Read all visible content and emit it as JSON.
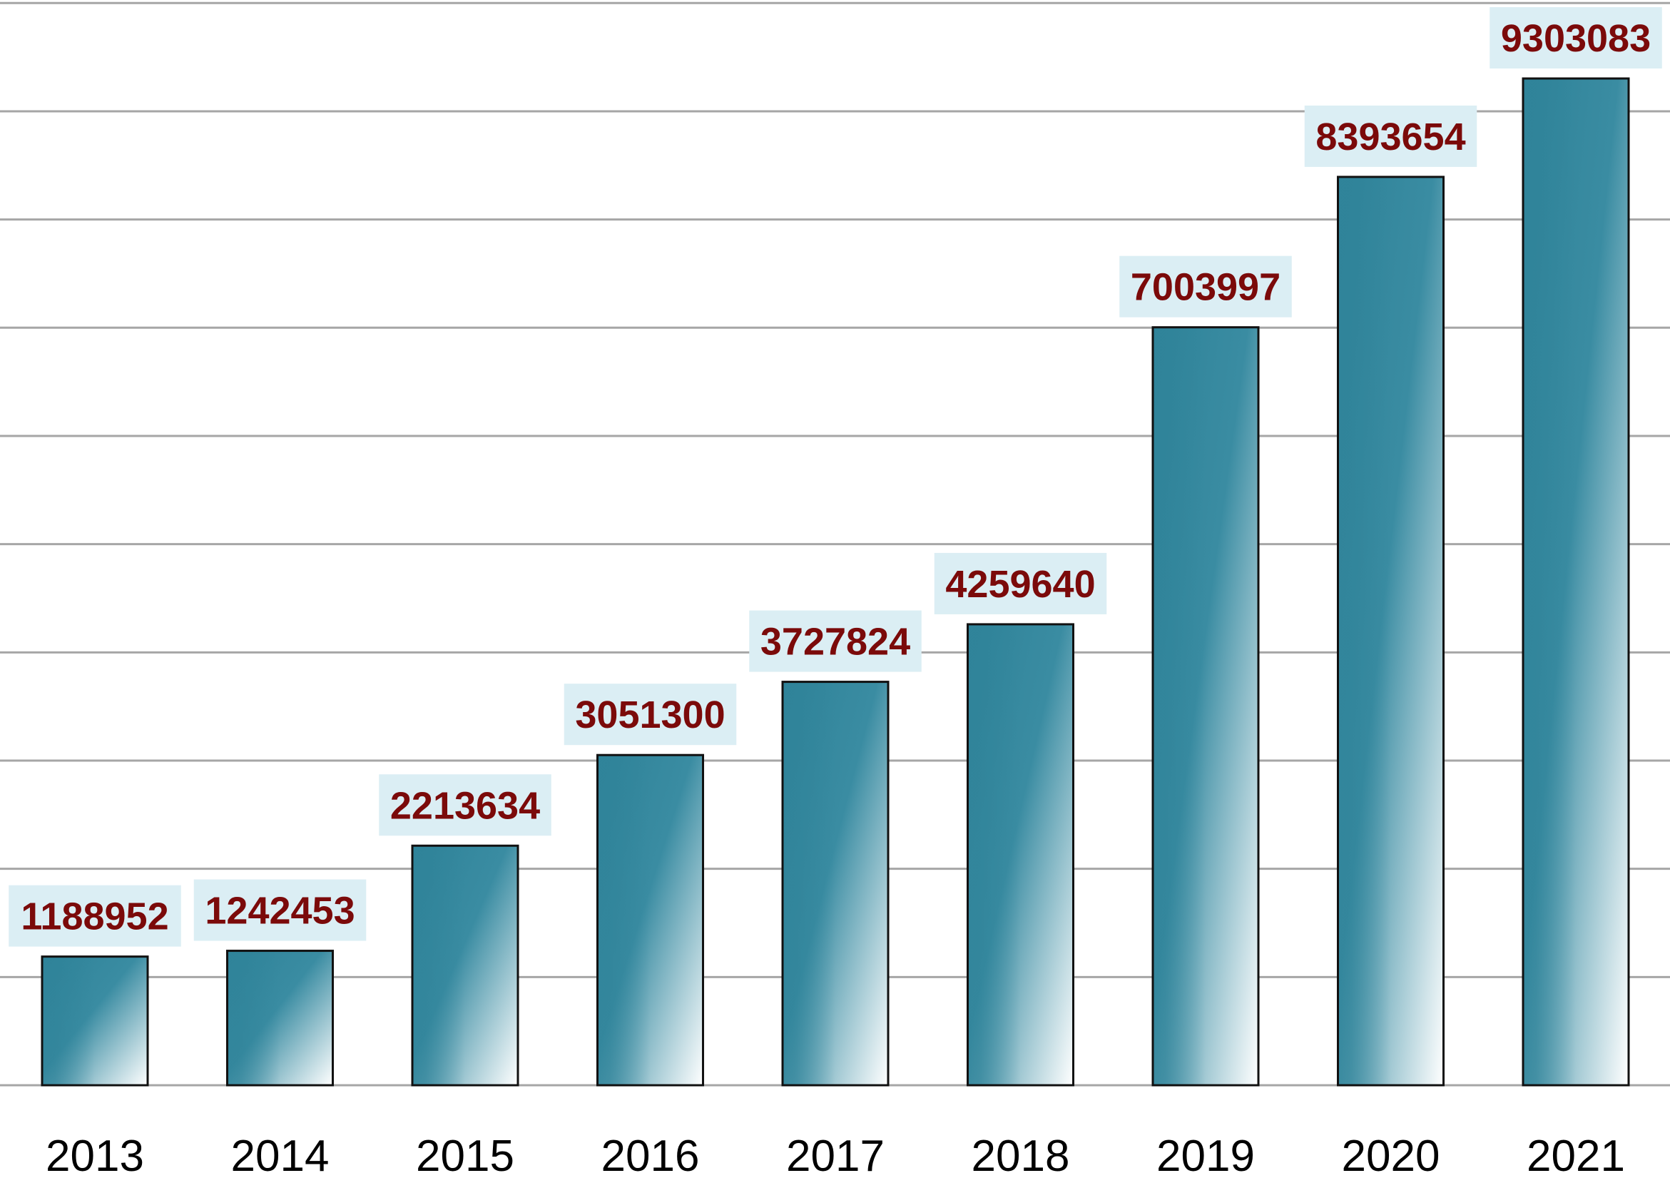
{
  "chart_data": {
    "type": "bar",
    "title": "",
    "xlabel": "",
    "ylabel": "",
    "categories": [
      "2013",
      "2014",
      "2015",
      "2016",
      "2017",
      "2018",
      "2019",
      "2020",
      "2021"
    ],
    "values": [
      1188952,
      1242453,
      2213634,
      3051300,
      3727824,
      4259640,
      7003997,
      8393654,
      9303083
    ],
    "data_labels": [
      "1188952",
      "1242453",
      "2213634",
      "3051300",
      "3727824",
      "4259640",
      "7003997",
      "8393654",
      "9303083"
    ],
    "ylim": [
      0,
      10000000
    ],
    "gridline_step": 1000000,
    "grid": true,
    "y_tick_labels_shown": false,
    "legend": "none",
    "colors": {
      "bar_top": "#2f8399",
      "bar_light": "#ffffff",
      "bar_border": "#111111",
      "label_text": "#7b0a0a",
      "label_box": "#dbeef4",
      "grid": "#a6a6a6",
      "axis_text": "#000000"
    }
  }
}
